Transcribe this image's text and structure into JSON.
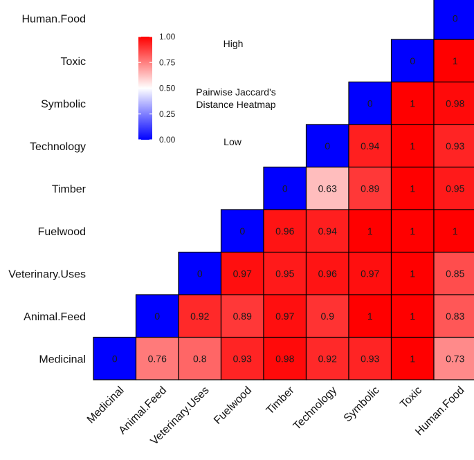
{
  "chart_data": {
    "type": "heatmap",
    "title": "Pairwise Jaccard's Distance Heatmap",
    "title_lines": [
      "Pairwise Jaccard's",
      "Distance Heatmap"
    ],
    "categories": [
      "Medicinal",
      "Animal.Feed",
      "Veterinary.Uses",
      "Fuelwood",
      "Timber",
      "Technology",
      "Symbolic",
      "Toxic",
      "Human.Food"
    ],
    "matrix": [
      [
        0,
        0.76,
        0.8,
        0.93,
        0.98,
        0.92,
        0.93,
        1,
        0.73
      ],
      [
        null,
        0,
        0.92,
        0.89,
        0.97,
        0.9,
        1,
        1,
        0.83
      ],
      [
        null,
        null,
        0,
        0.97,
        0.95,
        0.96,
        0.97,
        1,
        0.85
      ],
      [
        null,
        null,
        null,
        0,
        0.96,
        0.94,
        1,
        1,
        1
      ],
      [
        null,
        null,
        null,
        null,
        0,
        0.63,
        0.89,
        1,
        0.95
      ],
      [
        null,
        null,
        null,
        null,
        null,
        0,
        0.94,
        1,
        0.93
      ],
      [
        null,
        null,
        null,
        null,
        null,
        null,
        0,
        1,
        0.98
      ],
      [
        null,
        null,
        null,
        null,
        null,
        null,
        null,
        0,
        1
      ],
      [
        null,
        null,
        null,
        null,
        null,
        null,
        null,
        null,
        0
      ]
    ],
    "legend": {
      "ticks": [
        "1.00",
        "0.75",
        "0.50",
        "0.25",
        "0.00"
      ],
      "range": [
        0,
        1
      ],
      "high_label": "High",
      "low_label": "Low"
    },
    "colors": {
      "low": "#0000ff",
      "mid": "#ffffff",
      "high": "#ff0000"
    }
  }
}
